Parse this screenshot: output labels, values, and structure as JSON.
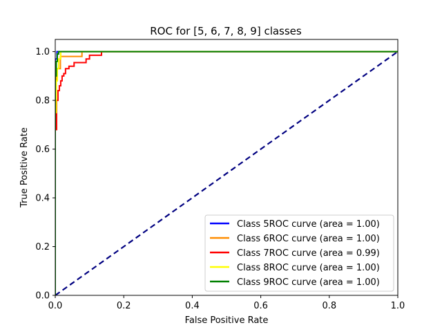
{
  "chart_data": {
    "type": "line",
    "title": "ROC for [5, 6, 7, 8, 9] classes",
    "xlabel": "False Positive Rate",
    "ylabel": "True Positive Rate",
    "xlim": [
      0.0,
      1.0
    ],
    "ylim": [
      0.0,
      1.05
    ],
    "x_ticks": [
      "0.0",
      "0.2",
      "0.4",
      "0.6",
      "0.8",
      "1.0"
    ],
    "y_ticks": [
      "0.0",
      "0.2",
      "0.4",
      "0.6",
      "0.8",
      "1.0"
    ],
    "grid": false,
    "legend_position": "lower-right",
    "diagonal": {
      "x": [
        0,
        1
      ],
      "y": [
        0,
        1
      ],
      "color": "#000080",
      "style": "dashed"
    },
    "series": [
      {
        "name": "Class 5ROC curve (area = 1.00)",
        "color": "#0000ff",
        "x": [
          0.0,
          0.0,
          0.005,
          0.005,
          1.0
        ],
        "y": [
          0.0,
          0.97,
          0.97,
          1.0,
          1.0
        ]
      },
      {
        "name": "Class 6ROC curve (area = 1.00)",
        "color": "#ff8c00",
        "x": [
          0.0,
          0.0,
          0.003,
          0.003,
          0.015,
          0.015,
          0.078,
          0.078,
          1.0
        ],
        "y": [
          0.0,
          0.8,
          0.8,
          0.93,
          0.93,
          0.98,
          0.98,
          1.0,
          1.0
        ]
      },
      {
        "name": "Class 7ROC curve (area = 0.99)",
        "color": "#ff0000",
        "x": [
          0.0,
          0.0,
          0.004,
          0.004,
          0.008,
          0.008,
          0.012,
          0.012,
          0.016,
          0.016,
          0.02,
          0.02,
          0.025,
          0.025,
          0.03,
          0.03,
          0.04,
          0.04,
          0.055,
          0.055,
          0.09,
          0.09,
          0.1,
          0.1,
          0.135,
          0.135,
          1.0
        ],
        "y": [
          0.0,
          0.68,
          0.68,
          0.8,
          0.8,
          0.84,
          0.84,
          0.86,
          0.86,
          0.88,
          0.88,
          0.9,
          0.9,
          0.91,
          0.91,
          0.93,
          0.93,
          0.94,
          0.94,
          0.955,
          0.955,
          0.97,
          0.97,
          0.985,
          0.985,
          1.0,
          1.0
        ]
      },
      {
        "name": "Class 8ROC curve (area = 1.00)",
        "color": "#ffff00",
        "x": [
          0.0,
          0.0,
          0.003,
          0.003,
          0.006,
          0.006,
          0.01,
          0.01,
          0.016,
          0.016,
          1.0
        ],
        "y": [
          0.0,
          0.75,
          0.75,
          0.88,
          0.88,
          0.93,
          0.93,
          0.97,
          0.97,
          1.0,
          1.0
        ]
      },
      {
        "name": "Class 9ROC curve (area = 1.00)",
        "color": "#008000",
        "x": [
          0.0,
          0.0,
          0.003,
          0.003,
          0.006,
          0.006,
          0.01,
          0.01,
          1.0
        ],
        "y": [
          0.0,
          0.9,
          0.9,
          0.96,
          0.96,
          0.99,
          0.99,
          1.0,
          1.0
        ]
      }
    ]
  }
}
